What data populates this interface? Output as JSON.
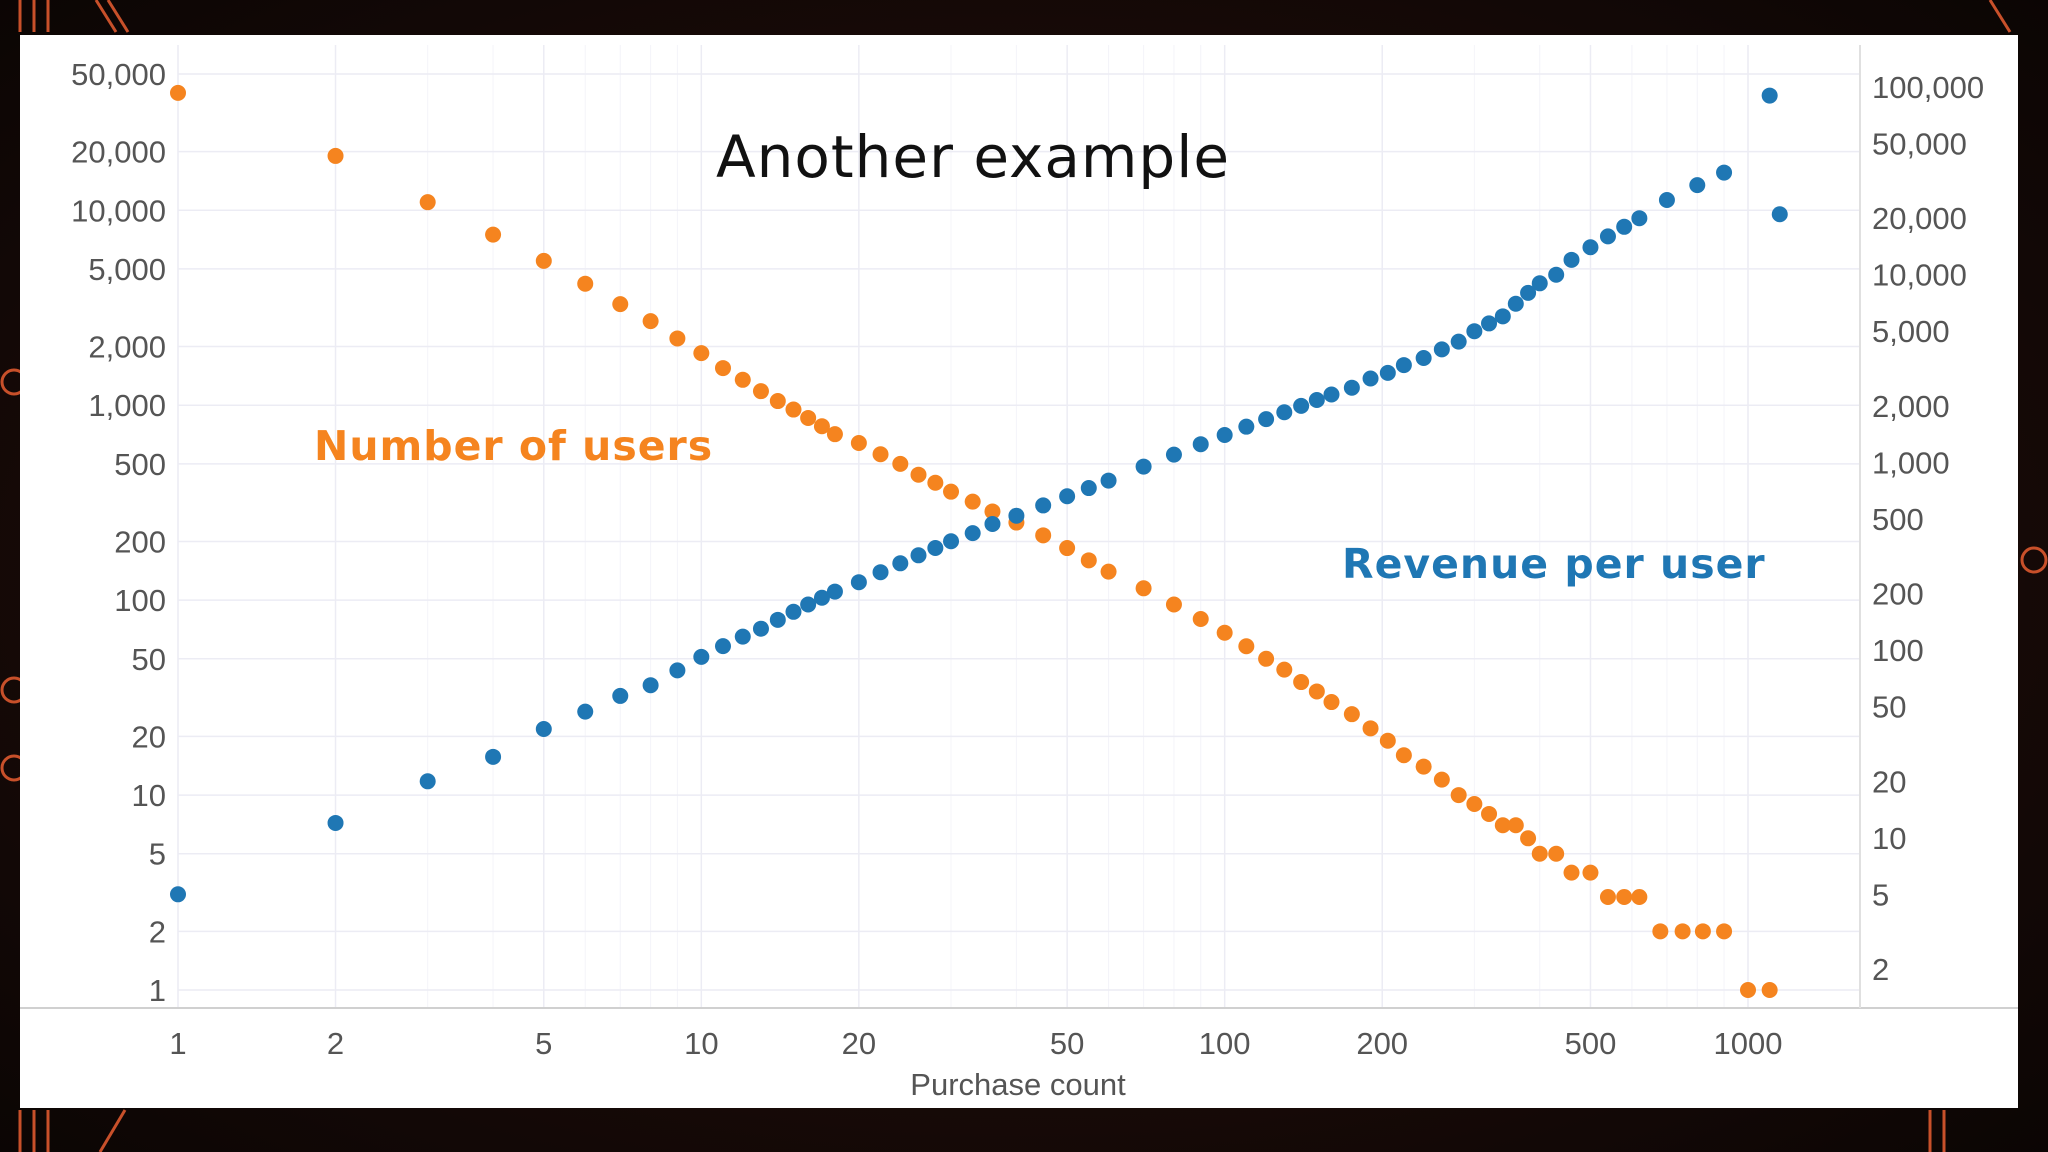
{
  "slide": {
    "title": "Another example",
    "background": "#120807",
    "accent": "#c8502a"
  },
  "chart_data": {
    "type": "scatter",
    "title": "Another example",
    "xlabel": "Purchase count",
    "x_scale": "log",
    "y_left_scale": "log",
    "y_right_scale": "log",
    "x_ticks": [
      "1",
      "2",
      "5",
      "10",
      "20",
      "50",
      "100",
      "200",
      "500",
      "1000"
    ],
    "y_left_ticks": [
      "1",
      "2",
      "5",
      "10",
      "20",
      "50",
      "100",
      "200",
      "500",
      "1,000",
      "2,000",
      "5,000",
      "10,000",
      "20,000",
      "50,000"
    ],
    "y_right_ticks": [
      "2",
      "5",
      "10",
      "20",
      "50",
      "100",
      "200",
      "500",
      "1,000",
      "2,000",
      "5,000",
      "10,000",
      "20,000",
      "50,000",
      "100,000"
    ],
    "grid": true,
    "legend": "none",
    "annotations": [
      "Number of users",
      "Revenue per user"
    ],
    "series": [
      {
        "name": "Number of users",
        "axis": "left",
        "color": "#f5841f",
        "points": [
          [
            1,
            40000
          ],
          [
            2,
            19000
          ],
          [
            3,
            11000
          ],
          [
            4,
            7500
          ],
          [
            5,
            5500
          ],
          [
            6,
            4200
          ],
          [
            7,
            3300
          ],
          [
            8,
            2700
          ],
          [
            9,
            2200
          ],
          [
            10,
            1850
          ],
          [
            11,
            1550
          ],
          [
            12,
            1350
          ],
          [
            13,
            1180
          ],
          [
            14,
            1050
          ],
          [
            15,
            950
          ],
          [
            16,
            860
          ],
          [
            17,
            780
          ],
          [
            18,
            710
          ],
          [
            20,
            640
          ],
          [
            22,
            560
          ],
          [
            24,
            500
          ],
          [
            26,
            440
          ],
          [
            28,
            400
          ],
          [
            30,
            360
          ],
          [
            33,
            320
          ],
          [
            36,
            285
          ],
          [
            40,
            250
          ],
          [
            45,
            215
          ],
          [
            50,
            185
          ],
          [
            55,
            160
          ],
          [
            60,
            140
          ],
          [
            70,
            115
          ],
          [
            80,
            95
          ],
          [
            90,
            80
          ],
          [
            100,
            68
          ],
          [
            110,
            58
          ],
          [
            120,
            50
          ],
          [
            130,
            44
          ],
          [
            140,
            38
          ],
          [
            150,
            34
          ],
          [
            160,
            30
          ],
          [
            175,
            26
          ],
          [
            190,
            22
          ],
          [
            205,
            19
          ],
          [
            220,
            16
          ],
          [
            240,
            14
          ],
          [
            260,
            12
          ],
          [
            280,
            10
          ],
          [
            300,
            9
          ],
          [
            320,
            8
          ],
          [
            340,
            7
          ],
          [
            360,
            7
          ],
          [
            380,
            6
          ],
          [
            400,
            5
          ],
          [
            430,
            5
          ],
          [
            460,
            4
          ],
          [
            500,
            4
          ],
          [
            540,
            3
          ],
          [
            580,
            3
          ],
          [
            620,
            3
          ],
          [
            680,
            2
          ],
          [
            750,
            2
          ],
          [
            820,
            2
          ],
          [
            900,
            2
          ],
          [
            1000,
            1
          ],
          [
            1100,
            1
          ]
        ]
      },
      {
        "name": "Revenue per user",
        "axis": "right",
        "color": "#1f77b4",
        "points": [
          [
            1,
            5
          ],
          [
            2,
            12
          ],
          [
            3,
            20
          ],
          [
            4,
            27
          ],
          [
            5,
            38
          ],
          [
            6,
            47
          ],
          [
            7,
            57
          ],
          [
            8,
            65
          ],
          [
            9,
            78
          ],
          [
            10,
            92
          ],
          [
            11,
            105
          ],
          [
            12,
            118
          ],
          [
            13,
            130
          ],
          [
            14,
            145
          ],
          [
            15,
            160
          ],
          [
            16,
            175
          ],
          [
            17,
            190
          ],
          [
            18,
            205
          ],
          [
            20,
            230
          ],
          [
            22,
            260
          ],
          [
            24,
            290
          ],
          [
            26,
            320
          ],
          [
            28,
            350
          ],
          [
            30,
            380
          ],
          [
            33,
            420
          ],
          [
            36,
            470
          ],
          [
            40,
            520
          ],
          [
            45,
            590
          ],
          [
            50,
            660
          ],
          [
            55,
            730
          ],
          [
            60,
            800
          ],
          [
            70,
            950
          ],
          [
            80,
            1100
          ],
          [
            90,
            1250
          ],
          [
            100,
            1400
          ],
          [
            110,
            1550
          ],
          [
            120,
            1700
          ],
          [
            130,
            1850
          ],
          [
            140,
            2000
          ],
          [
            150,
            2150
          ],
          [
            160,
            2300
          ],
          [
            175,
            2500
          ],
          [
            190,
            2800
          ],
          [
            205,
            3000
          ],
          [
            220,
            3300
          ],
          [
            240,
            3600
          ],
          [
            260,
            4000
          ],
          [
            280,
            4400
          ],
          [
            300,
            5000
          ],
          [
            320,
            5500
          ],
          [
            340,
            6000
          ],
          [
            360,
            7000
          ],
          [
            380,
            8000
          ],
          [
            400,
            9000
          ],
          [
            430,
            10000
          ],
          [
            460,
            12000
          ],
          [
            500,
            14000
          ],
          [
            540,
            16000
          ],
          [
            580,
            18000
          ],
          [
            620,
            20000
          ],
          [
            700,
            25000
          ],
          [
            800,
            30000
          ],
          [
            900,
            35000
          ],
          [
            1100,
            90000
          ],
          [
            1150,
            21000
          ]
        ]
      }
    ]
  }
}
